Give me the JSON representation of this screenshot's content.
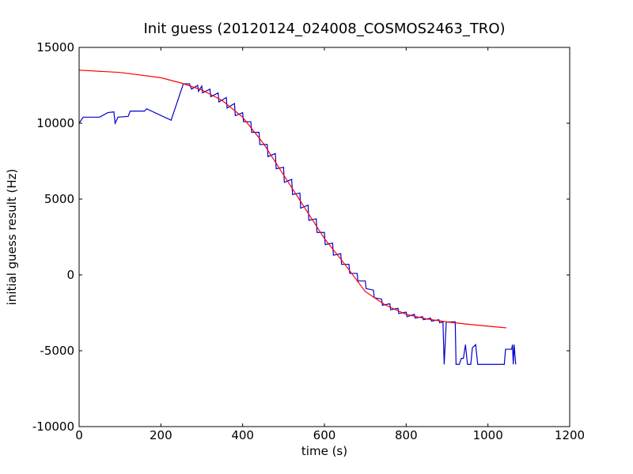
{
  "chart_data": {
    "type": "line",
    "title": "Init guess (20120124_024008_COSMOS2463_TRO)",
    "xlabel": "time (s)",
    "ylabel": "initial guess result (Hz)",
    "xlim": [
      0,
      1200
    ],
    "xticks": [
      0,
      200,
      400,
      600,
      800,
      1000,
      1200
    ],
    "ylim": [
      -10000,
      15000
    ],
    "yticks": [
      -10000,
      -5000,
      0,
      5000,
      10000,
      15000
    ],
    "series": [
      {
        "color": "#0000cc",
        "x": [
          0,
          10,
          50,
          70,
          85,
          88,
          95,
          120,
          125,
          160,
          165,
          225,
          255,
          270,
          275,
          290,
          292,
          300,
          302,
          320,
          322,
          340,
          342,
          360,
          362,
          380,
          382,
          400,
          402,
          420,
          422,
          440,
          442,
          460,
          462,
          480,
          482,
          500,
          502,
          520,
          522,
          540,
          542,
          560,
          562,
          580,
          582,
          600,
          602,
          620,
          622,
          640,
          642,
          660,
          662,
          680,
          682,
          700,
          702,
          720,
          722,
          740,
          742,
          760,
          762,
          780,
          782,
          800,
          802,
          820,
          822,
          840,
          842,
          860,
          862,
          880,
          882,
          890,
          893,
          898,
          920,
          922,
          930,
          935,
          940,
          945,
          950,
          958,
          962,
          970,
          975,
          1040,
          1043,
          1058,
          1060,
          1062,
          1064,
          1068
        ],
        "values": [
          10000,
          10400,
          10400,
          10700,
          10750,
          10000,
          10400,
          10450,
          10800,
          10800,
          10950,
          10200,
          12600,
          12600,
          12250,
          12500,
          12100,
          12450,
          12000,
          12250,
          11750,
          12000,
          11400,
          11700,
          11000,
          11300,
          10500,
          10700,
          10100,
          10100,
          9400,
          9400,
          8600,
          8600,
          7800,
          8000,
          7000,
          7100,
          6100,
          6300,
          5300,
          5400,
          4400,
          4600,
          3600,
          3700,
          2800,
          2800,
          2000,
          2100,
          1300,
          1400,
          700,
          700,
          100,
          100,
          -400,
          -400,
          -900,
          -1000,
          -1500,
          -1600,
          -2000,
          -1900,
          -2300,
          -2200,
          -2550,
          -2450,
          -2750,
          -2600,
          -2850,
          -2750,
          -2950,
          -2850,
          -3050,
          -2950,
          -3150,
          -3100,
          -5900,
          -3100,
          -3100,
          -5900,
          -5900,
          -5500,
          -5500,
          -4600,
          -5900,
          -5900,
          -4800,
          -4600,
          -5900,
          -5900,
          -4900,
          -4900,
          -4600,
          -5900,
          -4600,
          -5900
        ]
      },
      {
        "color": "#ff0000",
        "x": [
          0,
          100,
          200,
          250,
          300,
          350,
          400,
          450,
          500,
          550,
          600,
          650,
          700,
          750,
          800,
          850,
          900,
          950,
          1000,
          1045
        ],
        "values": [
          13500,
          13350,
          13000,
          12650,
          12200,
          11500,
          10400,
          8700,
          6600,
          4500,
          2400,
          700,
          -1100,
          -2000,
          -2600,
          -2900,
          -3100,
          -3250,
          -3380,
          -3490
        ]
      }
    ]
  }
}
